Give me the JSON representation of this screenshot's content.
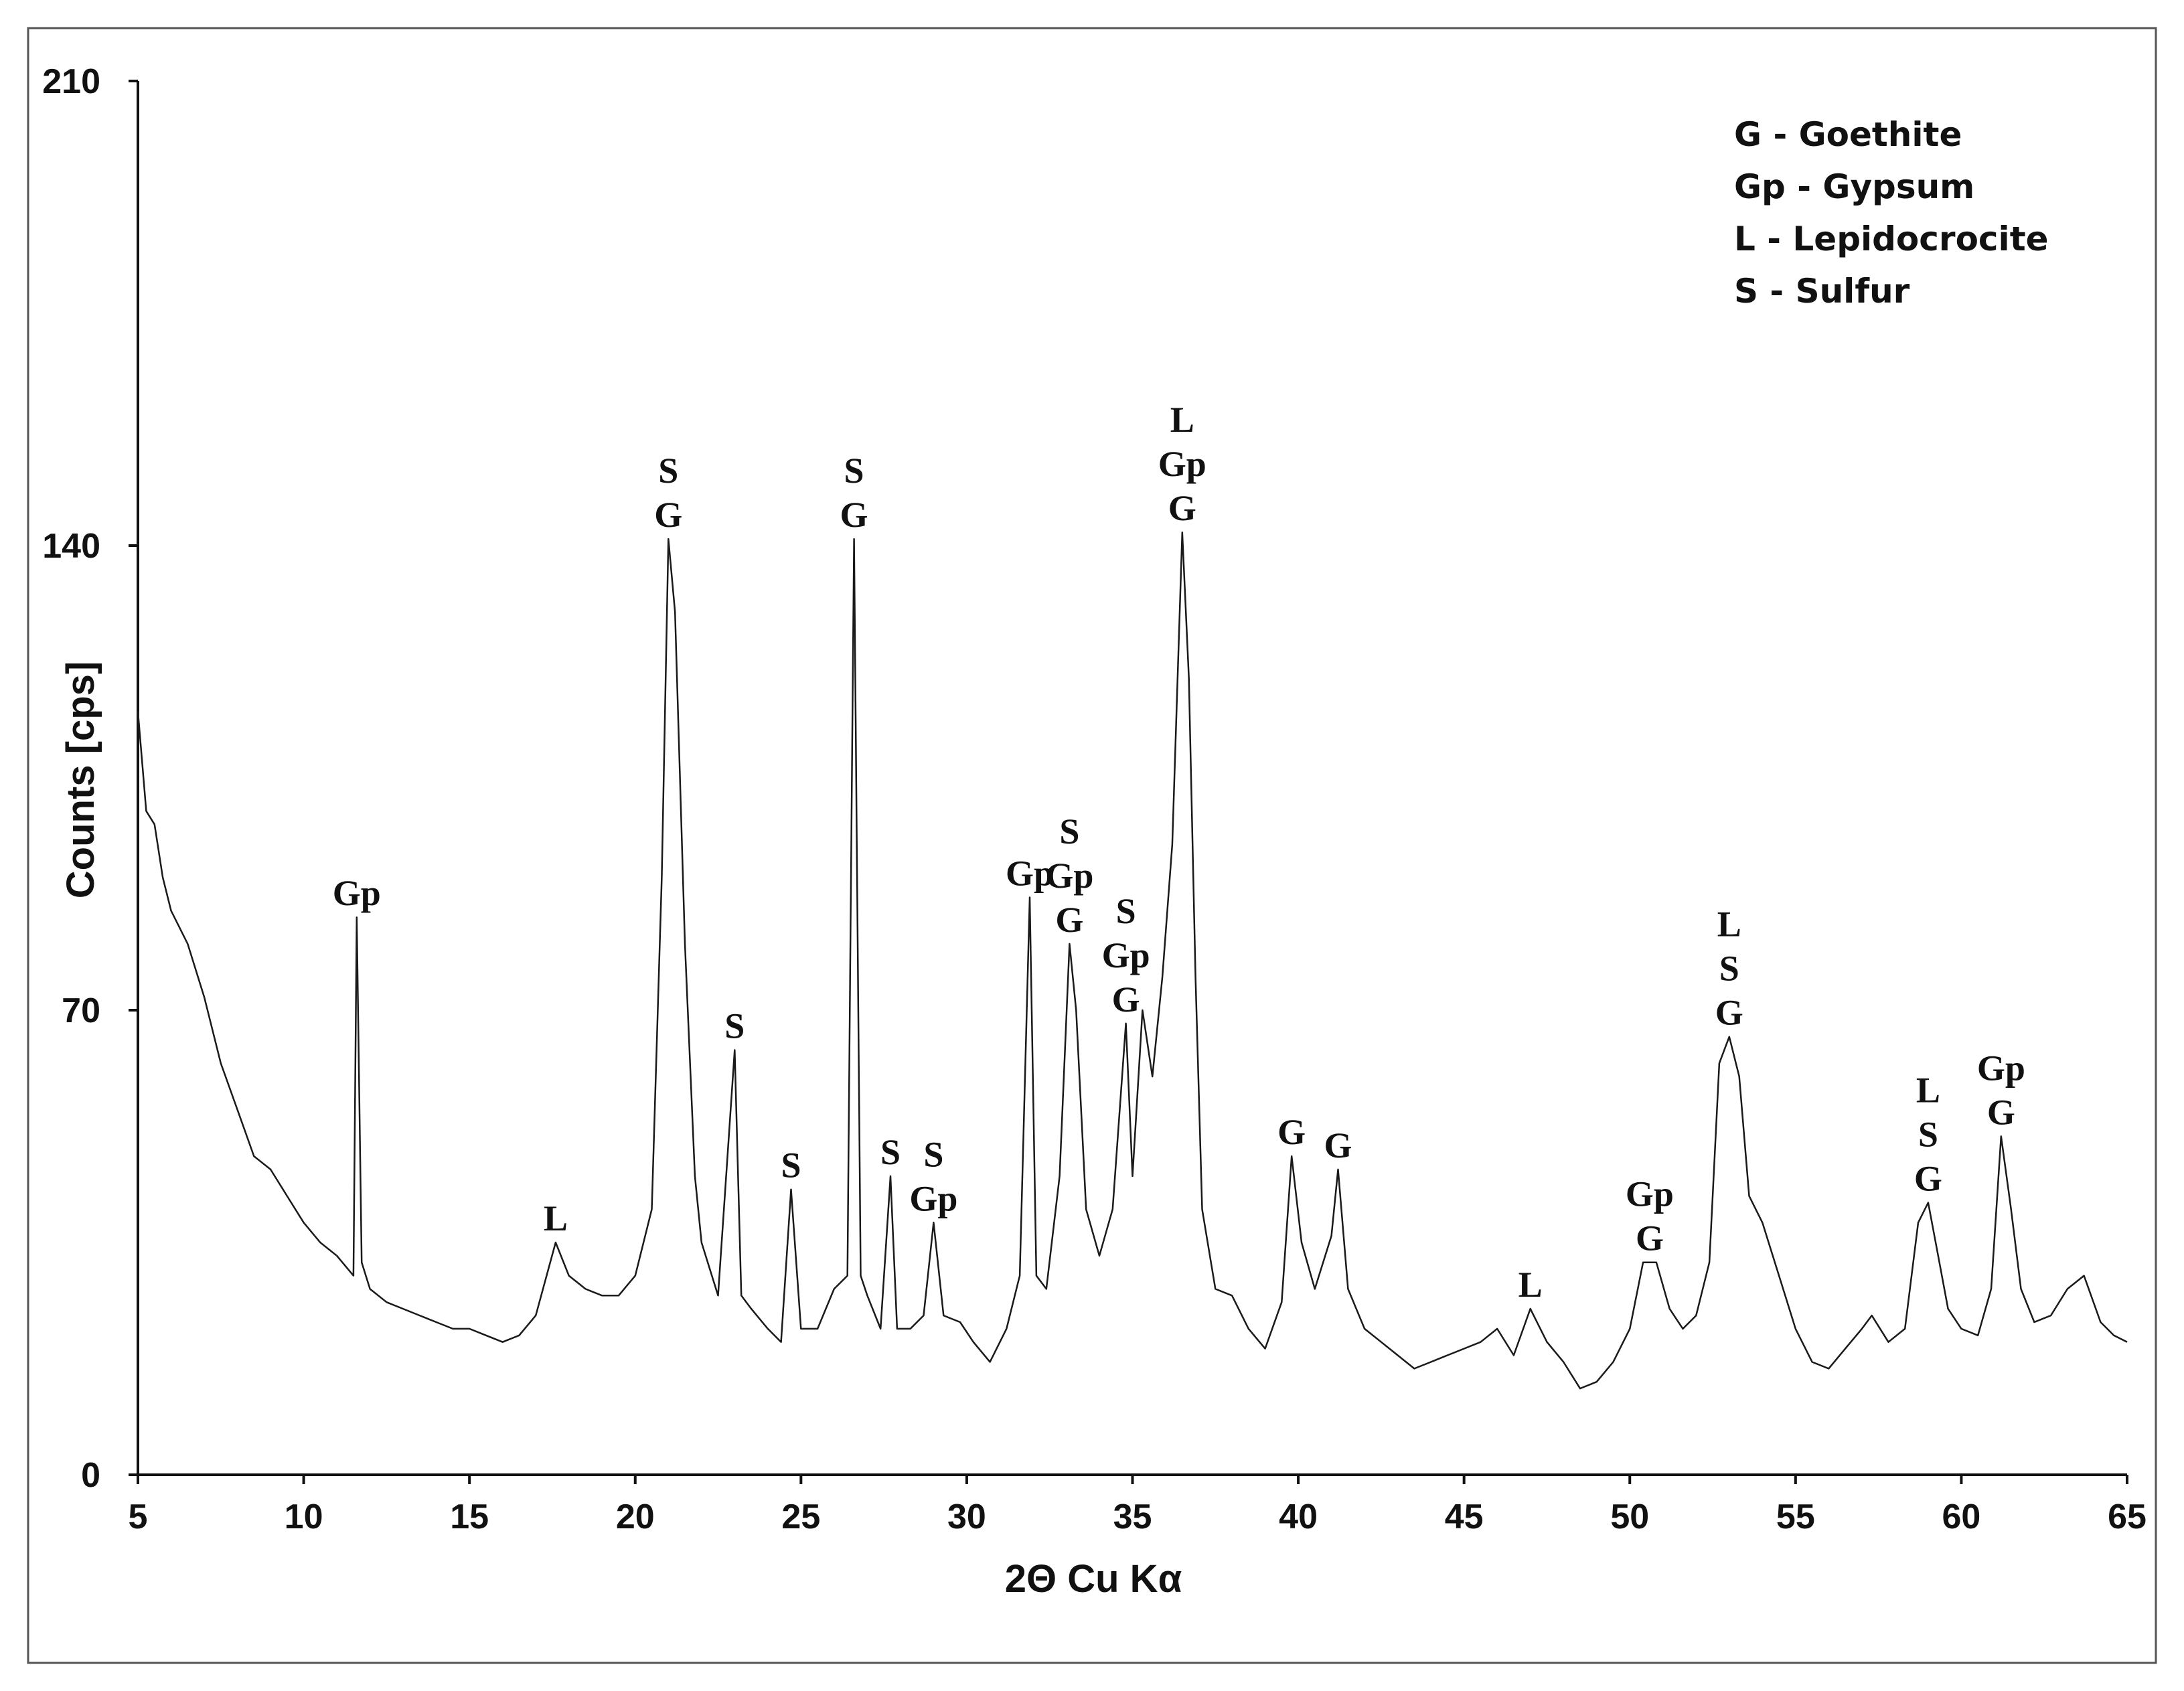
{
  "chart_data": {
    "type": "line",
    "xlabel": "2Θ Cu Kα",
    "ylabel": "Counts [cps]",
    "color": "#1a1a1a",
    "grid": false,
    "xlim": [
      5,
      65
    ],
    "xticks": [
      5,
      10,
      15,
      20,
      25,
      30,
      35,
      40,
      45,
      50,
      55,
      60,
      65
    ],
    "ylim": [
      0,
      210
    ],
    "yticks": [
      0,
      70,
      140,
      210
    ],
    "x": [
      5,
      5.25,
      5.5,
      5.75,
      6,
      6.5,
      7,
      7.5,
      8,
      8.5,
      9,
      9.5,
      10,
      10.5,
      11,
      11.5,
      11.6,
      11.75,
      12,
      12.5,
      13,
      13.5,
      14,
      14.5,
      15,
      15.5,
      16,
      16.5,
      17,
      17.6,
      18,
      18.5,
      19,
      19.5,
      20,
      20.5,
      20.8,
      21.0,
      21.2,
      21.5,
      21.8,
      22,
      22.5,
      23,
      23.2,
      23.5,
      24,
      24.4,
      24.7,
      25,
      25.5,
      26,
      26.4,
      26.6,
      26.8,
      27,
      27.4,
      27.7,
      27.9,
      28.3,
      28.7,
      29.0,
      29.3,
      29.8,
      30.2,
      30.7,
      31.2,
      31.6,
      31.9,
      32.1,
      32.4,
      32.8,
      33.1,
      33.3,
      33.6,
      34,
      34.4,
      34.8,
      35.0,
      35.3,
      35.6,
      35.9,
      36.2,
      36.5,
      36.7,
      36.9,
      37.1,
      37.5,
      38,
      38.5,
      39,
      39.5,
      39.8,
      40.1,
      40.5,
      41,
      41.2,
      41.5,
      42,
      42.5,
      43,
      43.5,
      44,
      44.5,
      45,
      45.5,
      46,
      46.5,
      47,
      47.5,
      48,
      48.5,
      49,
      49.5,
      50,
      50.4,
      50.8,
      51.2,
      51.6,
      52,
      52.4,
      52.7,
      53.0,
      53.3,
      53.6,
      54,
      54.5,
      55,
      55.5,
      56,
      56.5,
      57,
      57.3,
      57.8,
      58.3,
      58.7,
      59.0,
      59.3,
      59.6,
      60,
      60.5,
      60.9,
      61.2,
      61.5,
      61.8,
      62.2,
      62.7,
      63.2,
      63.7,
      64.2,
      64.6,
      65
    ],
    "values": [
      115,
      100,
      98,
      90,
      85,
      80,
      72,
      62,
      55,
      48,
      46,
      42,
      38,
      35,
      33,
      30,
      84,
      32,
      28,
      26,
      25,
      24,
      23,
      22,
      22,
      21,
      20,
      21,
      24,
      35,
      30,
      28,
      27,
      27,
      30,
      40,
      90,
      141,
      130,
      80,
      45,
      35,
      27,
      64,
      27,
      25,
      22,
      20,
      43,
      22,
      22,
      28,
      30,
      141,
      30,
      27,
      22,
      45,
      22,
      22,
      24,
      38,
      24,
      23,
      20,
      17,
      22,
      30,
      87,
      30,
      28,
      45,
      80,
      70,
      40,
      33,
      40,
      68,
      45,
      70,
      60,
      75,
      95,
      142,
      120,
      75,
      40,
      28,
      27,
      22,
      19,
      26,
      48,
      35,
      28,
      36,
      46,
      28,
      22,
      20,
      18,
      16,
      17,
      18,
      19,
      20,
      22,
      18,
      25,
      20,
      17,
      13,
      14,
      17,
      22,
      32,
      32,
      25,
      22,
      24,
      32,
      62,
      66,
      60,
      42,
      38,
      30,
      22,
      17,
      16,
      19,
      22,
      24,
      20,
      22,
      38,
      41,
      33,
      25,
      22,
      21,
      28,
      51,
      40,
      28,
      23,
      24,
      28,
      30,
      23,
      21,
      20
    ],
    "legend_text": [
      "G - Goethite",
      "Gp - Gypsum",
      "L - Lepidocrocite",
      "S - Sulfur"
    ],
    "annotations": [
      {
        "x": 11.6,
        "lines": [
          "Gp"
        ]
      },
      {
        "x": 17.6,
        "lines": [
          "L"
        ]
      },
      {
        "x": 21.0,
        "lines": [
          "S",
          "G"
        ]
      },
      {
        "x": 23.0,
        "lines": [
          "S"
        ]
      },
      {
        "x": 24.7,
        "lines": [
          "S"
        ]
      },
      {
        "x": 26.6,
        "lines": [
          "S",
          "G"
        ]
      },
      {
        "x": 27.7,
        "lines": [
          "S"
        ]
      },
      {
        "x": 29.0,
        "lines": [
          "S",
          "Gp"
        ]
      },
      {
        "x": 31.9,
        "lines": [
          "Gp"
        ]
      },
      {
        "x": 33.1,
        "lines": [
          "S",
          "Gp",
          "G"
        ]
      },
      {
        "x": 34.8,
        "lines": [
          "S",
          "Gp",
          "G"
        ]
      },
      {
        "x": 36.5,
        "lines": [
          "L",
          "Gp",
          "G"
        ]
      },
      {
        "x": 39.8,
        "lines": [
          "G"
        ]
      },
      {
        "x": 41.2,
        "lines": [
          "G"
        ]
      },
      {
        "x": 47.0,
        "lines": [
          "L"
        ]
      },
      {
        "x": 50.6,
        "lines": [
          "Gp",
          "G"
        ]
      },
      {
        "x": 53.0,
        "lines": [
          "L",
          "S",
          "G"
        ]
      },
      {
        "x": 59.0,
        "lines": [
          "L",
          "S",
          "G"
        ]
      },
      {
        "x": 61.2,
        "lines": [
          "Gp",
          "G"
        ]
      }
    ]
  }
}
